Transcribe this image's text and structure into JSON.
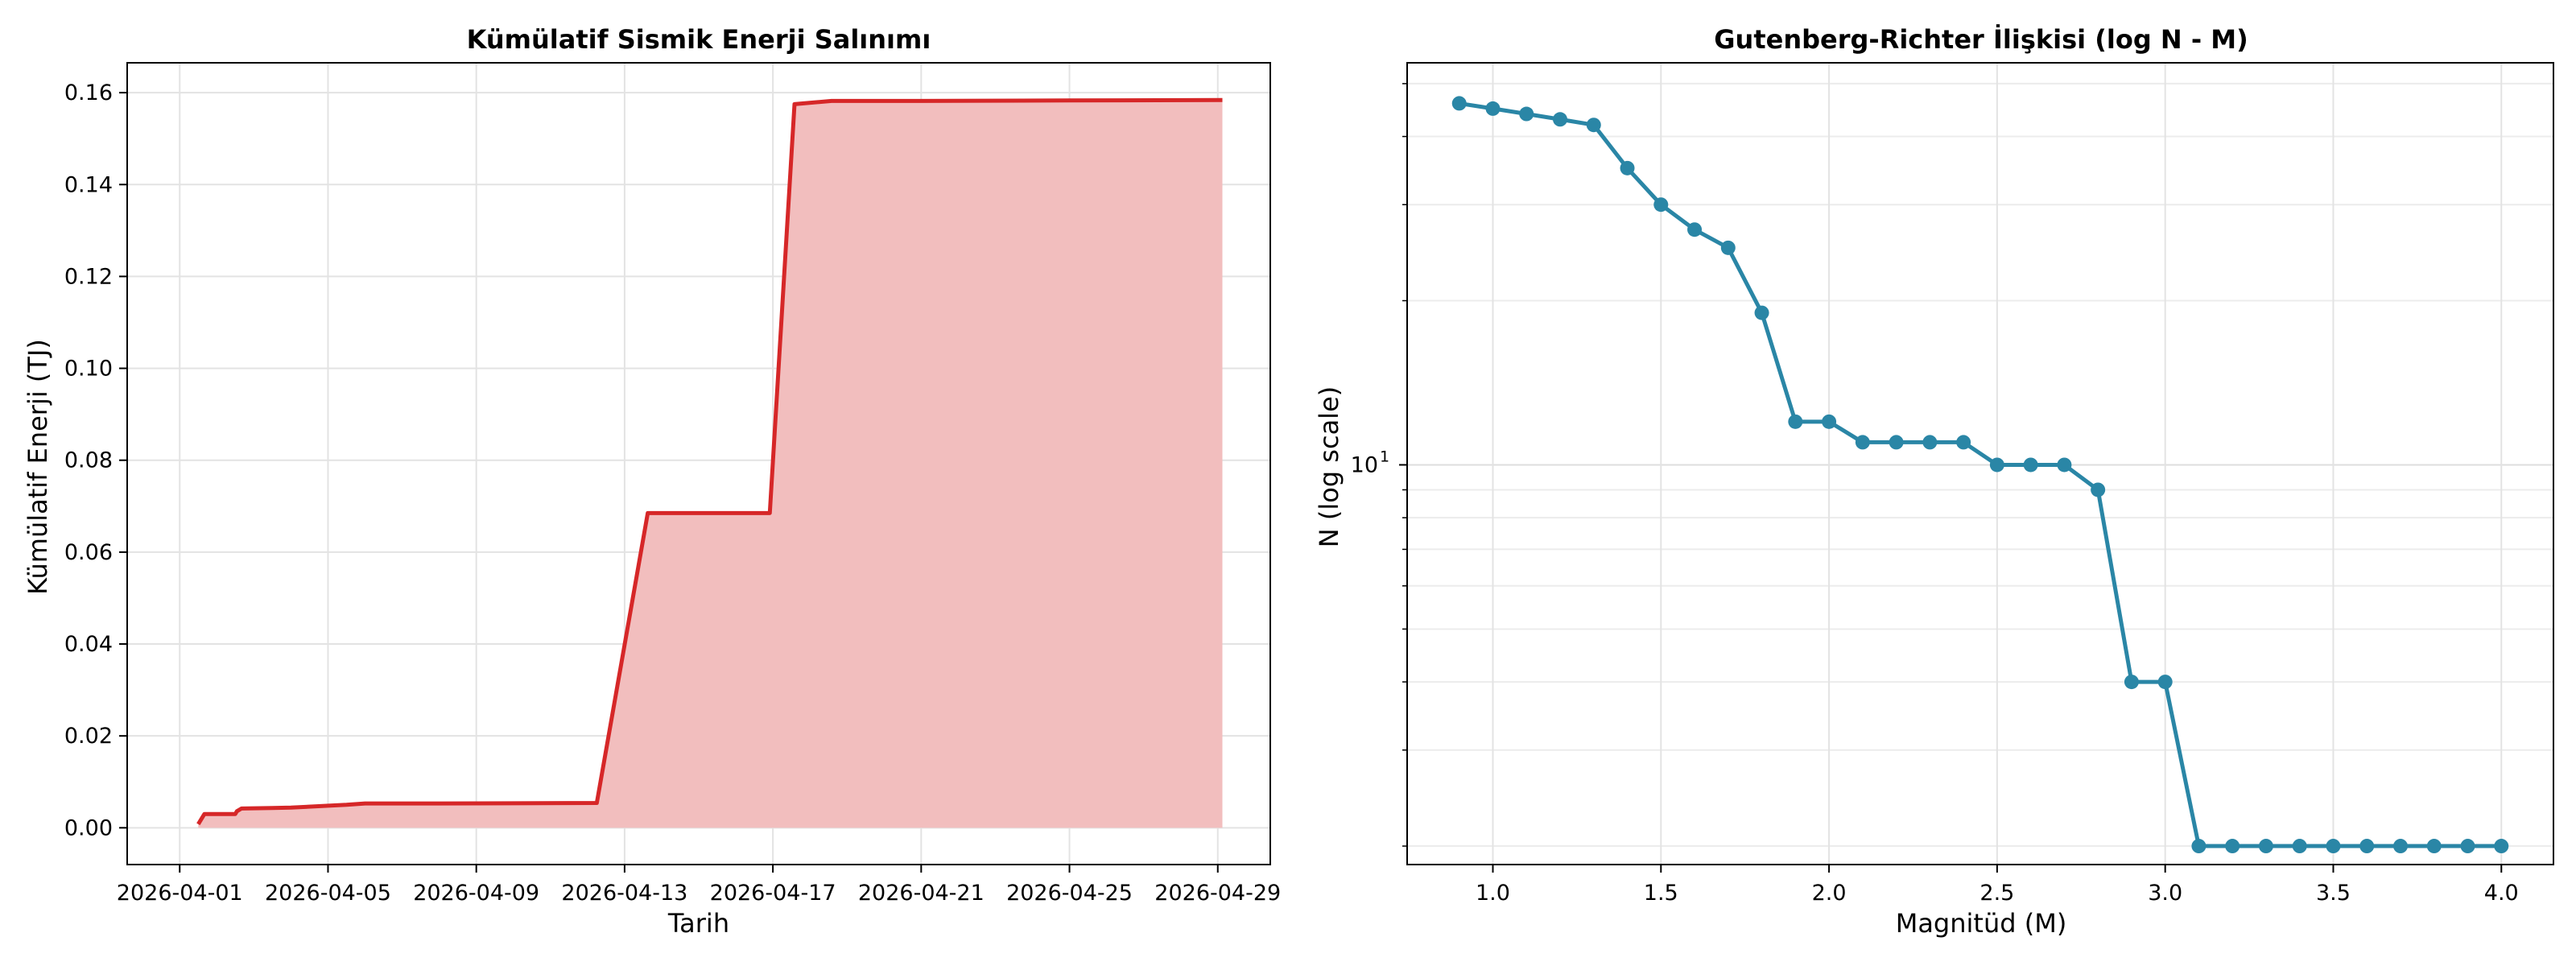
{
  "chart_data": [
    {
      "type": "area",
      "title": "Kümülatif Sismik Enerji Salınımı",
      "xlabel": "Tarih",
      "ylabel": "Kümülatif Enerji (TJ)",
      "x_ticks": [
        "2026-04-01",
        "2026-04-05",
        "2026-04-09",
        "2026-04-13",
        "2026-04-17",
        "2026-04-21",
        "2026-04-25",
        "2026-04-29"
      ],
      "y_ticks": [
        "0.00",
        "0.02",
        "0.04",
        "0.06",
        "0.08",
        "0.10",
        "0.12",
        "0.14",
        "0.16"
      ],
      "xlim": [
        "2026-03-30T14:00",
        "2026-04-30T10:00"
      ],
      "ylim": [
        -0.008,
        0.1665
      ],
      "grid": true,
      "line_color": "#d62728",
      "fill_color": "#f2bebe",
      "points": [
        {
          "x": "2026-04-01T12:00",
          "y": 0.0008
        },
        {
          "x": "2026-04-01T16:00",
          "y": 0.003
        },
        {
          "x": "2026-04-02T12:00",
          "y": 0.003
        },
        {
          "x": "2026-04-02T13:00",
          "y": 0.0036
        },
        {
          "x": "2026-04-02T16:00",
          "y": 0.0042
        },
        {
          "x": "2026-04-03T12:00",
          "y": 0.0043
        },
        {
          "x": "2026-04-04T00:00",
          "y": 0.0044
        },
        {
          "x": "2026-04-05T12:00",
          "y": 0.005
        },
        {
          "x": "2026-04-06T00:00",
          "y": 0.0053
        },
        {
          "x": "2026-04-08T00:00",
          "y": 0.0053
        },
        {
          "x": "2026-04-12T06:00",
          "y": 0.0054
        },
        {
          "x": "2026-04-13T15:00",
          "y": 0.0685
        },
        {
          "x": "2026-04-16T22:00",
          "y": 0.0685
        },
        {
          "x": "2026-04-17T14:00",
          "y": 0.1575
        },
        {
          "x": "2026-04-18T14:00",
          "y": 0.1582
        },
        {
          "x": "2026-04-21T00:00",
          "y": 0.1582
        },
        {
          "x": "2026-04-25T00:00",
          "y": 0.1583
        },
        {
          "x": "2026-04-29T03:00",
          "y": 0.1584
        }
      ]
    },
    {
      "type": "line",
      "title": "Gutenberg-Richter İlişkisi (log N - M)",
      "xlabel": "Magnitüd (M)",
      "ylabel": "N (log scale)",
      "x_ticks": [
        1.0,
        1.5,
        2.0,
        2.5,
        3.0,
        3.5,
        4.0
      ],
      "x_tick_labels": [
        "1.0",
        "1.5",
        "2.0",
        "2.5",
        "3.0",
        "3.5",
        "4.0"
      ],
      "y_major_tick": 10,
      "y_major_tick_label": "10",
      "y_major_tick_exponent": "1",
      "y_minor_ticks": [
        2,
        3,
        4,
        5,
        6,
        7,
        8,
        9,
        20,
        30,
        40,
        50
      ],
      "y_scale": "log",
      "xlim": [
        0.745,
        4.155
      ],
      "ylim": [
        1.85,
        54.6
      ],
      "grid": true,
      "color": "#2a86a6",
      "x": [
        0.9,
        1.0,
        1.1,
        1.2,
        1.3,
        1.4,
        1.5,
        1.6,
        1.7,
        1.8,
        1.9,
        2.0,
        2.1,
        2.2,
        2.3,
        2.4,
        2.5,
        2.6,
        2.7,
        2.8,
        2.9,
        3.0,
        3.1,
        3.2,
        3.3,
        3.4,
        3.5,
        3.6,
        3.7,
        3.8,
        3.9,
        4.0
      ],
      "y": [
        46,
        45,
        44,
        43,
        42,
        35,
        30,
        27,
        25,
        19,
        12,
        12,
        11,
        11,
        11,
        11,
        10,
        10,
        10,
        9,
        4,
        4,
        2,
        2,
        2,
        2,
        2,
        2,
        2,
        2,
        2,
        2
      ]
    }
  ]
}
